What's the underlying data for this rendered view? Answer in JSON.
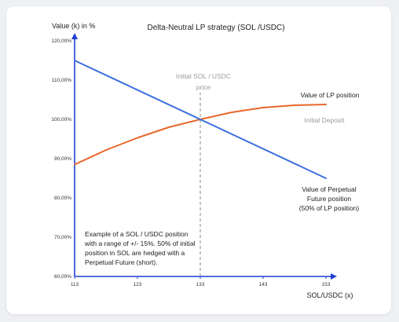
{
  "chart_data": {
    "type": "line",
    "title": "Delta-Neutral LP strategy (SOL /USDC)",
    "ylabel": "Value (k) in %",
    "xlabel": "SOL/USDC (x)",
    "x_ticks": [
      "113",
      "123",
      "133",
      "143",
      "153"
    ],
    "x_range": [
      113,
      153
    ],
    "y_ticks": [
      "60,00%",
      "70,00%",
      "80,00%",
      "90,00%",
      "100,00%",
      "110,00%",
      "120,00%"
    ],
    "y_range": [
      60,
      120
    ],
    "series": [
      {
        "name": "Value of LP position",
        "color": "#e8672a",
        "x": [
          113,
          118,
          123,
          128,
          133,
          138,
          143,
          148,
          153
        ],
        "y": [
          88.5,
          92.2,
          95.3,
          98.0,
          100.0,
          101.8,
          103.0,
          103.6,
          103.8
        ]
      },
      {
        "name": "Value of Perpetual Future position (50% of LP position)",
        "color": "#3b6fe0",
        "x": [
          113,
          133,
          153
        ],
        "y": [
          115,
          100,
          85
        ]
      }
    ],
    "reference_line": {
      "x": 133,
      "label_line1": "Initial SOL / USDC",
      "label_line2": "price"
    },
    "annotations": {
      "lp_label": "Value of LP position",
      "initial_deposit": "Initial Deposit",
      "perp_label_line1": "Value of Perpetual",
      "perp_label_line2": "Future position",
      "perp_label_line3": "(50% of LP position)",
      "note_line1": "Example of a SOL / USDC position",
      "note_line2": "with a range of +/- 15%. 50% of initial",
      "note_line3": "position in SOL are hedged with a",
      "note_line4": "Perpetual Future (short)."
    },
    "axis_color": "#1f3fd6",
    "grid": false
  }
}
